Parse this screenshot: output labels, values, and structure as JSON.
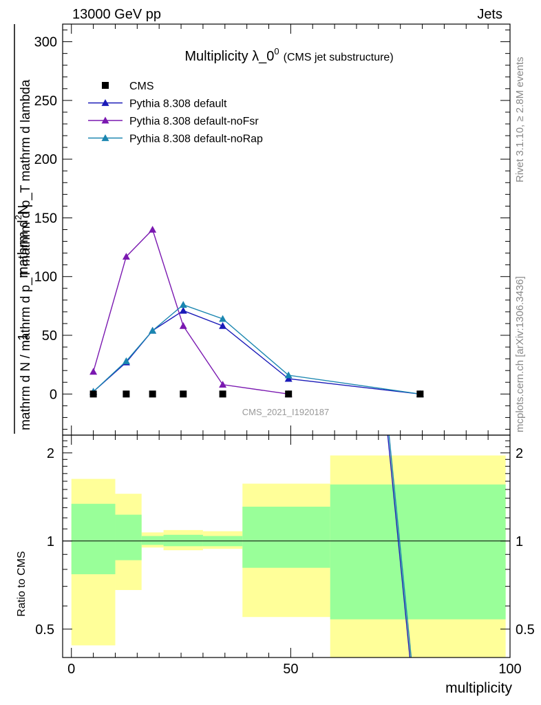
{
  "header": {
    "left": "13000 GeV pp",
    "right": "Jets"
  },
  "side_labels": {
    "rivet": "Rivet 3.1.10, ≥ 2.8M events",
    "source": "mcplots.cern.ch [arXiv:1306.3436]"
  },
  "watermark": "CMS_2021_I1920187",
  "chart_data": {
    "type": "line",
    "title": "Multiplicity λ_0^0",
    "title_main": "Multiplicity λ_0",
    "title_sup": "0",
    "title_note": "(CMS jet substructure)",
    "xlabel": "multiplicity",
    "ylabel_top": {
      "numerator_prefix": "1",
      "numerator": "mathrm d",
      "numerator_sup": "2",
      "numerator_suffix": "N",
      "denominator": "mathrm d N / mathrm d p_T mathrm d p_T mathrm d lambda"
    },
    "ylabel_ratio": "Ratio to CMS",
    "xlim": [
      -2,
      100
    ],
    "ylim_top": [
      -35,
      315
    ],
    "ylim_ratio": [
      0.4,
      2.3
    ],
    "log_ratio_axis": true,
    "x_ticks": [
      0,
      50,
      100
    ],
    "y_ticks_top": [
      0,
      50,
      100,
      150,
      200,
      250,
      300
    ],
    "y_ticks_ratio": [
      0.5,
      1,
      2
    ],
    "legend_position": "top-left",
    "series": [
      {
        "name": "CMS",
        "style": "markers",
        "color": "#000000",
        "points": [
          [
            5,
            0
          ],
          [
            12.5,
            0
          ],
          [
            18.5,
            0
          ],
          [
            25.5,
            0
          ],
          [
            34.5,
            0
          ],
          [
            49.5,
            0
          ],
          [
            79.5,
            0
          ]
        ]
      },
      {
        "name": "Pythia 8.308 default",
        "style": "line",
        "color": "#1a1ab8",
        "points": [
          [
            5,
            2
          ],
          [
            12.5,
            27
          ],
          [
            18.5,
            54
          ],
          [
            25.5,
            71
          ],
          [
            34.5,
            58
          ],
          [
            49.5,
            13
          ],
          [
            79.5,
            0
          ]
        ]
      },
      {
        "name": "Pythia 8.308 default-noFsr",
        "style": "line",
        "color": "#7a18b0",
        "points": [
          [
            5,
            19
          ],
          [
            12.5,
            117
          ],
          [
            18.5,
            140
          ],
          [
            25.5,
            58
          ],
          [
            34.5,
            8
          ],
          [
            49.5,
            0
          ]
        ]
      },
      {
        "name": "Pythia 8.308 default-noRap",
        "style": "line",
        "color": "#1a86b0",
        "points": [
          [
            5,
            2
          ],
          [
            12.5,
            28
          ],
          [
            18.5,
            54
          ],
          [
            25.5,
            76
          ],
          [
            34.5,
            64
          ],
          [
            49.5,
            16
          ],
          [
            79.5,
            0
          ]
        ]
      }
    ],
    "ratio_bands": [
      {
        "x0": 0,
        "x1": 10,
        "inner": [
          0.77,
          1.34
        ],
        "outer": [
          0.44,
          1.63
        ]
      },
      {
        "x0": 10,
        "x1": 16,
        "inner": [
          0.86,
          1.23
        ],
        "outer": [
          0.68,
          1.45
        ]
      },
      {
        "x0": 16,
        "x1": 21,
        "inner": [
          0.97,
          1.04
        ],
        "outer": [
          0.95,
          1.07
        ]
      },
      {
        "x0": 21,
        "x1": 30,
        "inner": [
          0.96,
          1.05
        ],
        "outer": [
          0.93,
          1.09
        ]
      },
      {
        "x0": 30,
        "x1": 39,
        "inner": [
          0.96,
          1.04
        ],
        "outer": [
          0.94,
          1.08
        ]
      },
      {
        "x0": 39,
        "x1": 59,
        "inner": [
          0.81,
          1.31
        ],
        "outer": [
          0.55,
          1.57
        ]
      },
      {
        "x0": 59,
        "x1": 99,
        "inner": [
          0.54,
          1.56
        ],
        "outer": [
          0.36,
          1.96
        ]
      }
    ],
    "ratio_lines": [
      {
        "name": "Pythia 8.308 default",
        "color": "#1a1ab8",
        "points": [
          [
            72,
            2.4
          ],
          [
            78,
            0.3
          ]
        ]
      },
      {
        "name": "Pythia 8.308 default-noRap",
        "color": "#1a86b0",
        "points": [
          [
            72.3,
            2.4
          ],
          [
            78.3,
            0.3
          ]
        ]
      }
    ]
  }
}
